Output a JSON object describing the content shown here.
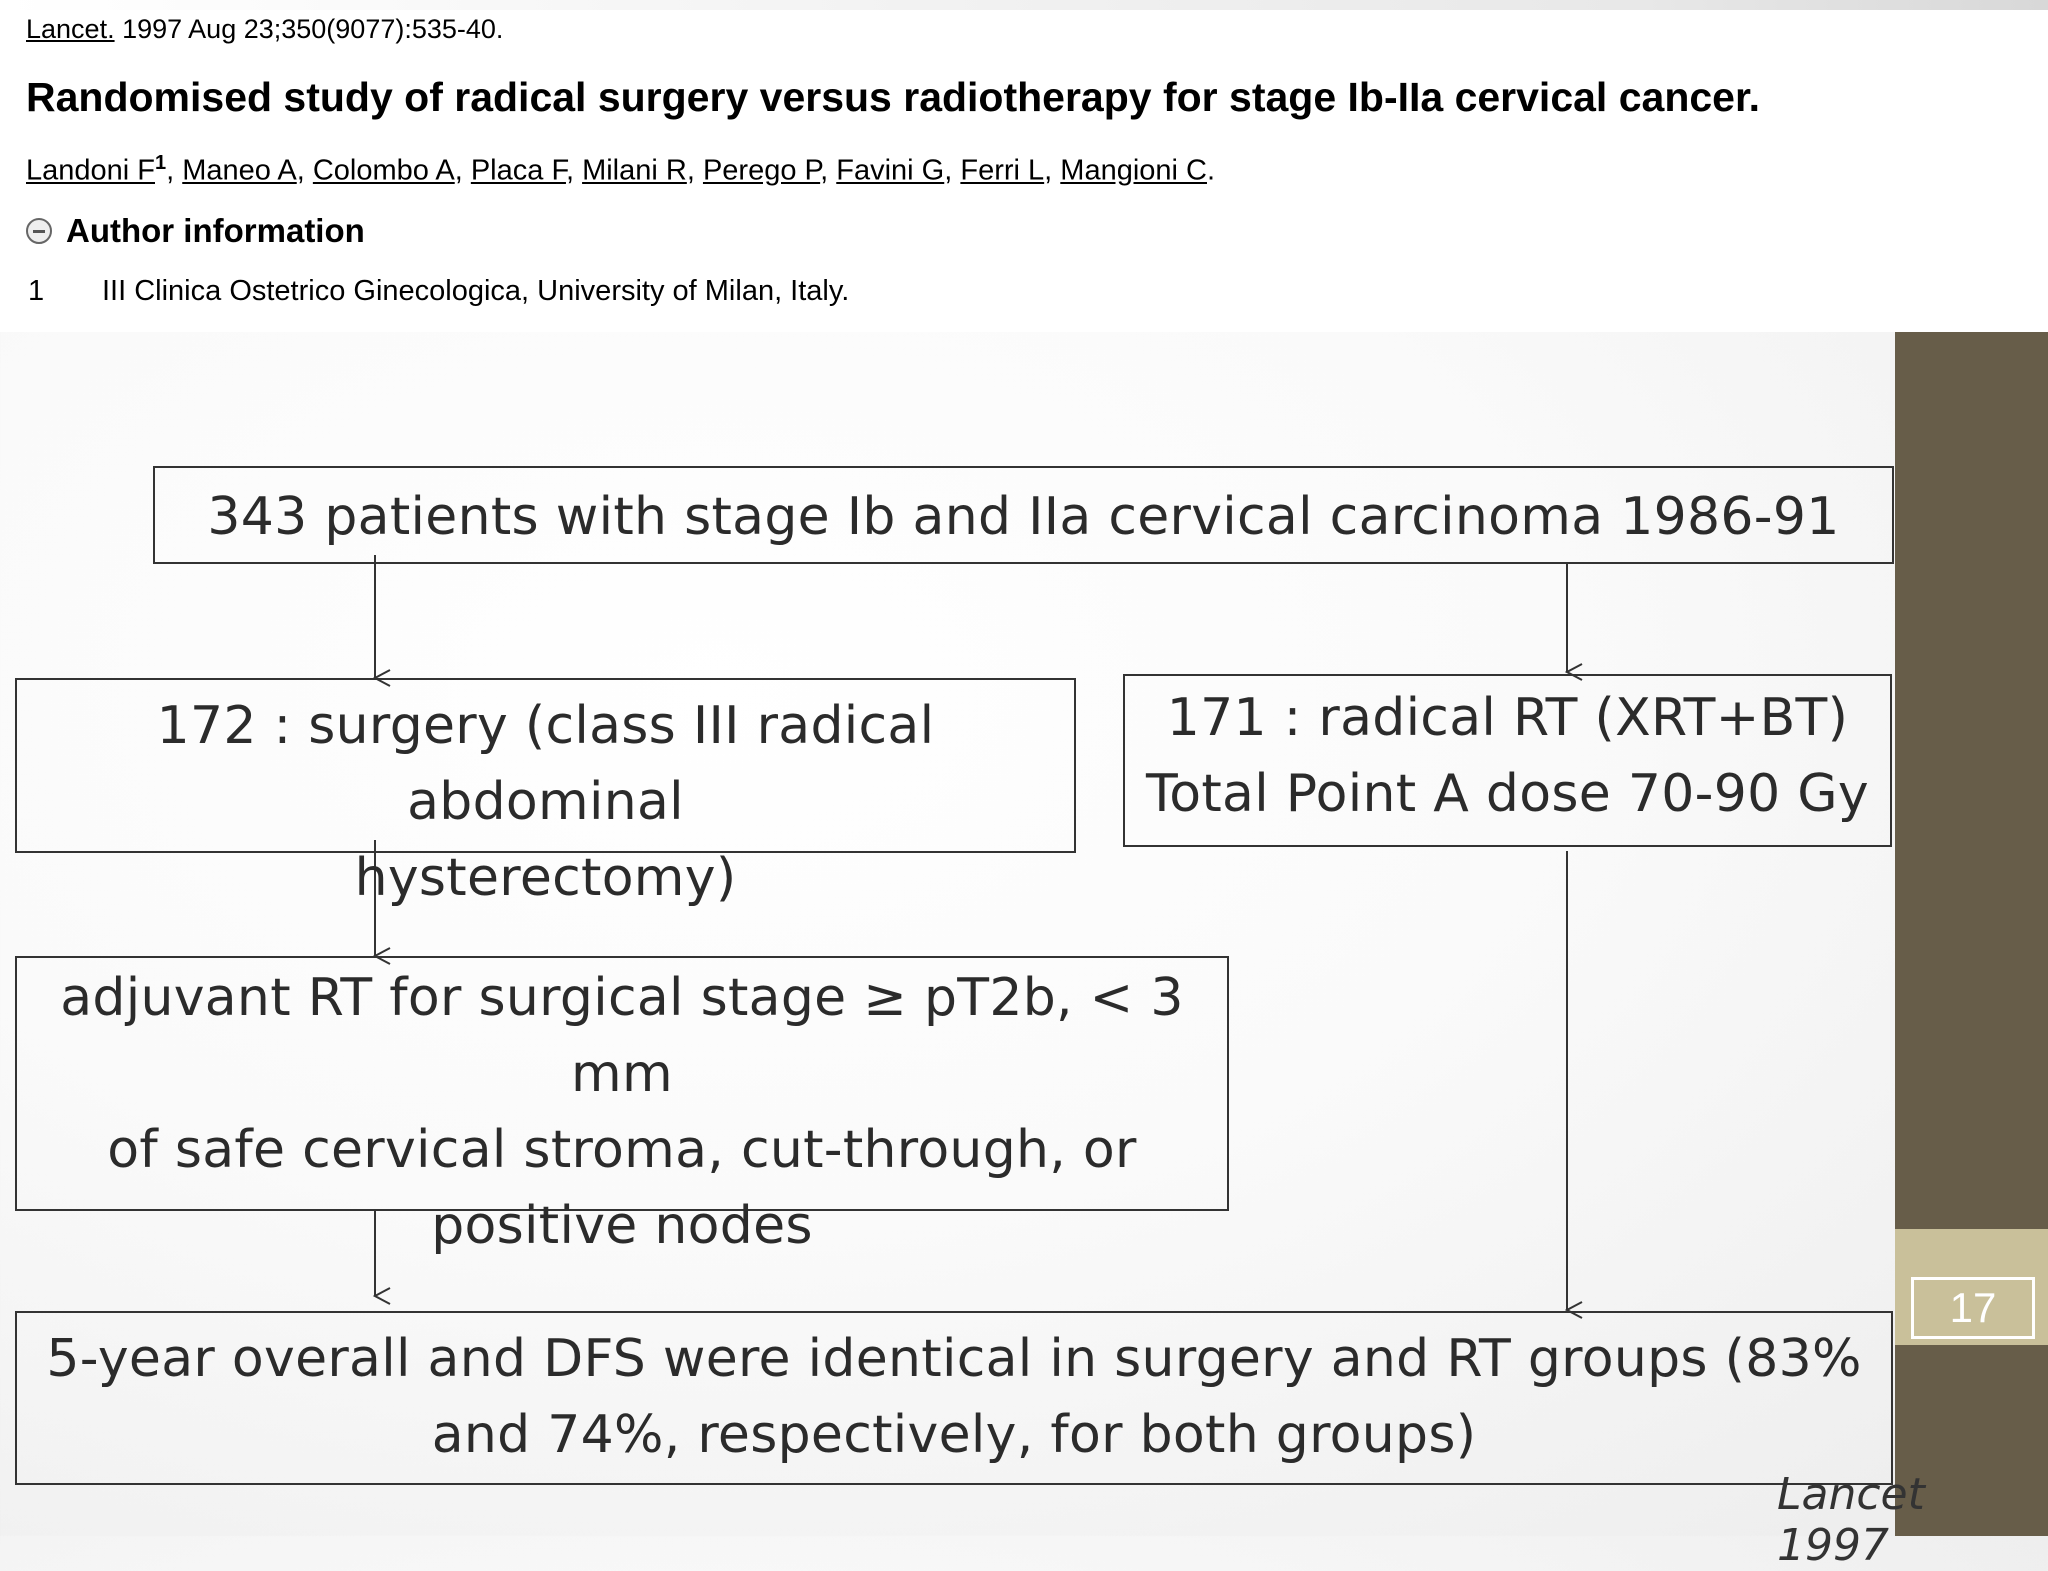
{
  "citation": {
    "journal": "Lancet.",
    "details": "1997 Aug 23;350(9077):535-40.",
    "title": "Randomised study of radical surgery versus radiotherapy for stage Ib-IIa cervical cancer.",
    "authors": [
      "Landoni F",
      "Maneo A",
      "Colombo A",
      "Placa F",
      "Milani R",
      "Perego P",
      "Favini G",
      "Ferri L",
      "Mangioni C"
    ],
    "first_author_sup": "1",
    "author_info_label": "Author information",
    "affiliation_number": "1",
    "affiliation": "III Clinica Ostetrico Ginecologica, University of Milan, Italy."
  },
  "flowchart": {
    "top": "343 patients with stage Ib and IIa cervical carcinoma 1986-91",
    "surgery": [
      "172 : surgery (class III radical abdominal",
      "hysterectomy)"
    ],
    "rt": [
      "171 : radical RT (XRT+BT)",
      "Total Point A dose 70-90 Gy"
    ],
    "adjuvant": [
      "adjuvant RT for surgical stage ≥ pT2b, < 3 mm",
      "of safe cervical stroma, cut-through, or",
      "positive nodes"
    ],
    "result": [
      "5-year overall and DFS were identical in surgery and RT groups (83%",
      "and 74%, respectively, for both groups)"
    ]
  },
  "slide_number": "17",
  "source_note": "Lancet 1997",
  "colors": {
    "sidebar": "#675d49",
    "sidebar_band": "#c9c09a"
  }
}
